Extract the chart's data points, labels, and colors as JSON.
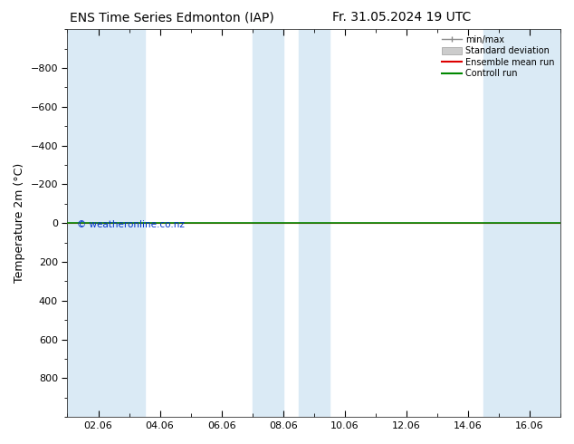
{
  "title_left": "ENS Time Series Edmonton (IAP)",
  "title_right": "Fr. 31.05.2024 19 UTC",
  "ylabel": "Temperature 2m (°C)",
  "watermark": "© weatheronline.co.nz",
  "ylim_bottom": 1000,
  "ylim_top": -1000,
  "yticks": [
    -800,
    -600,
    -400,
    -200,
    0,
    200,
    400,
    600,
    800
  ],
  "xtick_labels": [
    "02.06",
    "04.06",
    "06.06",
    "08.06",
    "10.06",
    "12.06",
    "14.06",
    "16.06"
  ],
  "xtick_positions": [
    2,
    4,
    6,
    8,
    10,
    12,
    14,
    16
  ],
  "x_min": 1,
  "x_max": 17,
  "shaded_bands": [
    [
      1.0,
      2.5
    ],
    [
      2.5,
      3.5
    ],
    [
      7.0,
      8.0
    ],
    [
      8.5,
      9.5
    ],
    [
      14.5,
      16.0
    ],
    [
      16.0,
      17.0
    ]
  ],
  "shade_color": "#daeaf5",
  "ensemble_mean_color": "#dd0000",
  "control_run_color": "#008800",
  "bg_color": "#ffffff",
  "plot_bg_color": "#ffffff",
  "legend_items": [
    "min/max",
    "Standard deviation",
    "Ensemble mean run",
    "Controll run"
  ],
  "title_fontsize": 10,
  "tick_fontsize": 8,
  "ylabel_fontsize": 9
}
